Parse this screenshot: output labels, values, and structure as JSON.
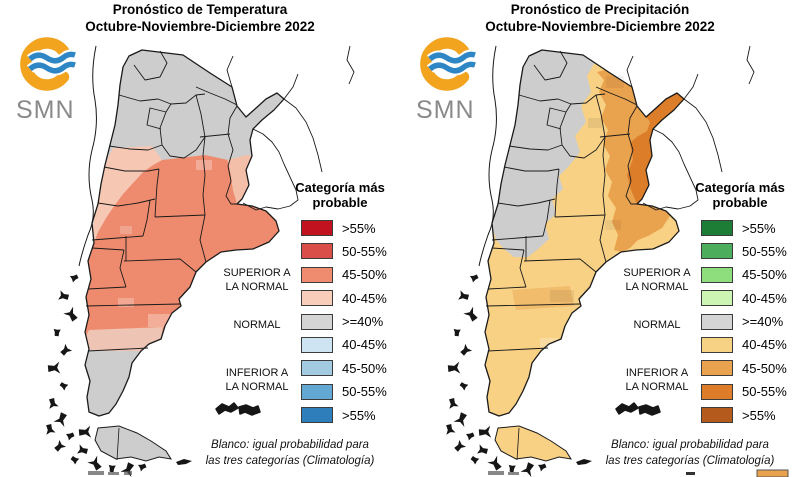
{
  "brand": {
    "logo_ring_color": "#f2a41f",
    "logo_wave_color": "#2f86c4",
    "logo_text_color": "#8a8a8a"
  },
  "artifacts": {
    "left_bottom_marks_color": "#555555",
    "right_bottom_swatch_color": "#e9a24d",
    "right_bottom_dash_color": "#333333"
  },
  "panels": [
    {
      "id": "temperature",
      "title_line1": "Pronóstico de Temperatura",
      "title_line2": "Octubre-Noviembre-Diciembre 2022",
      "logo_text": "SMN",
      "legend_title_line1": "Categoría más",
      "legend_title_line2": "probable",
      "legend_items": [
        {
          "label": ">55%",
          "color": "#c3121f"
        },
        {
          "label": "50-55%",
          "color": "#da4e49"
        },
        {
          "label": "45-50%",
          "color": "#ef8c6f"
        },
        {
          "label": "40-45%",
          "color": "#f8cdb9"
        },
        {
          "label": ">=40%",
          "color": "#d4d4d4"
        },
        {
          "label": "40-45%",
          "color": "#cfe4f2"
        },
        {
          "label": "45-50%",
          "color": "#a2cbe2"
        },
        {
          "label": "50-55%",
          "color": "#63a8d2"
        },
        {
          "label": ">55%",
          "color": "#2f7ebc"
        }
      ],
      "category_above_line1": "SUPERIOR A",
      "category_above_line2": "LA NORMAL",
      "category_normal": "NORMAL",
      "category_below_line1": "INFERIOR A",
      "category_below_line2": "LA NORMAL",
      "footnote_line1": "Blanco: igual probabilidad para",
      "footnote_line2": "las tres categorías (Climatología)",
      "map_palette": {
        "base": "#cdcdcd",
        "main": "#ee8b6e",
        "west": "#f6c8b4",
        "entrerios": "#f4bfa9",
        "strip": "#eec4b4",
        "far_south": "#cdcdcd",
        "tierra_del_fuego": "#cdcdcd"
      }
    },
    {
      "id": "precipitation",
      "title_line1": "Pronóstico de Precipitación",
      "title_line2": "Octubre-Noviembre-Diciembre 2022",
      "logo_text": "SMN",
      "legend_title_line1": "Categoría más",
      "legend_title_line2": "probable",
      "legend_items": [
        {
          "label": ">55%",
          "color": "#1d7c35"
        },
        {
          "label": "50-55%",
          "color": "#4cae5d"
        },
        {
          "label": "45-50%",
          "color": "#8ede7e"
        },
        {
          "label": "40-45%",
          "color": "#ccf5b3"
        },
        {
          "label": ">=40%",
          "color": "#d4d4d4"
        },
        {
          "label": "40-45%",
          "color": "#f8d284"
        },
        {
          "label": "45-50%",
          "color": "#e9a24d"
        },
        {
          "label": "50-55%",
          "color": "#de7d29"
        },
        {
          "label": ">55%",
          "color": "#b45a1d"
        }
      ],
      "category_above_line1": "SUPERIOR A",
      "category_above_line2": "LA NORMAL",
      "category_normal": "NORMAL",
      "category_below_line1": "INFERIOR A",
      "category_below_line2": "LA NORMAL",
      "footnote_line1": "Blanco: igual probabilidad para",
      "footnote_line2": "las tres categorías (Climatología)",
      "map_palette": {
        "base": "#f8d185",
        "northwest": "#cdcdcd",
        "northeast": "#e9a24d",
        "core": "#dc7d2a",
        "patch": "#e9a24d",
        "tierra_del_fuego": "#f8d185"
      }
    }
  ]
}
